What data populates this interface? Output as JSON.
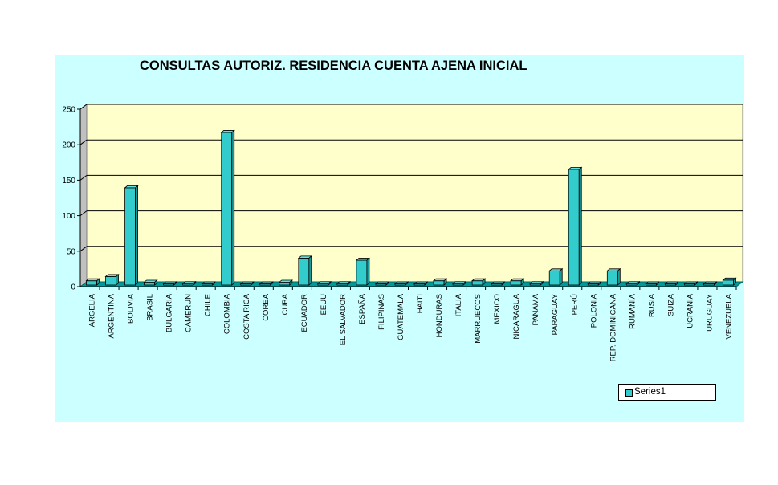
{
  "chart_data": {
    "type": "bar",
    "title": "CONSULTAS AUTORIZ. RESIDENCIA CUENTA AJENA INICIAL",
    "xlabel": "",
    "ylabel": "",
    "ylim": [
      0,
      250
    ],
    "yticks": [
      0,
      50,
      100,
      150,
      200,
      250
    ],
    "grid": true,
    "legend_position": "bottom-right",
    "categories": [
      "ARGELIA",
      "ARGENTINA",
      "BOLIVIA",
      "BRASIL",
      "BULGARIA",
      "CAMERUN",
      "CHILE",
      "COLOMBIA",
      "COSTA RICA",
      "COREA",
      "CUBA",
      "ECUADOR",
      "EEUU",
      "EL SALVADOR",
      "ESPAÑA",
      "FILIPINAS",
      "GUATEMALA",
      "HAITI",
      "HONDURAS",
      "ITALIA",
      "MARRUECOS",
      "MEXICO",
      "NICARAGUA",
      "PANAMA",
      "PARAGUAY",
      "PERÚ",
      "POLONIA",
      "REP. DOMINICANA",
      "RUMANÍA",
      "RUSIA",
      "SUIZA",
      "UCRANIA",
      "URUGUAY",
      "VENEZUELA"
    ],
    "series": [
      {
        "name": "Series1",
        "values": [
          6,
          12,
          137,
          4,
          1,
          2,
          1,
          215,
          1,
          1,
          4,
          38,
          2,
          2,
          35,
          1,
          1,
          1,
          6,
          2,
          6,
          1,
          6,
          2,
          20,
          163,
          1,
          20,
          2,
          1,
          1,
          1,
          1,
          7
        ]
      }
    ],
    "colors": {
      "bar": "#33cccc",
      "bar_top": "#66e0e0",
      "bar_side": "#1a9999",
      "plot_bg": "#ffffcc",
      "chart_bg": "#ccffff",
      "floor": "#009999"
    }
  }
}
